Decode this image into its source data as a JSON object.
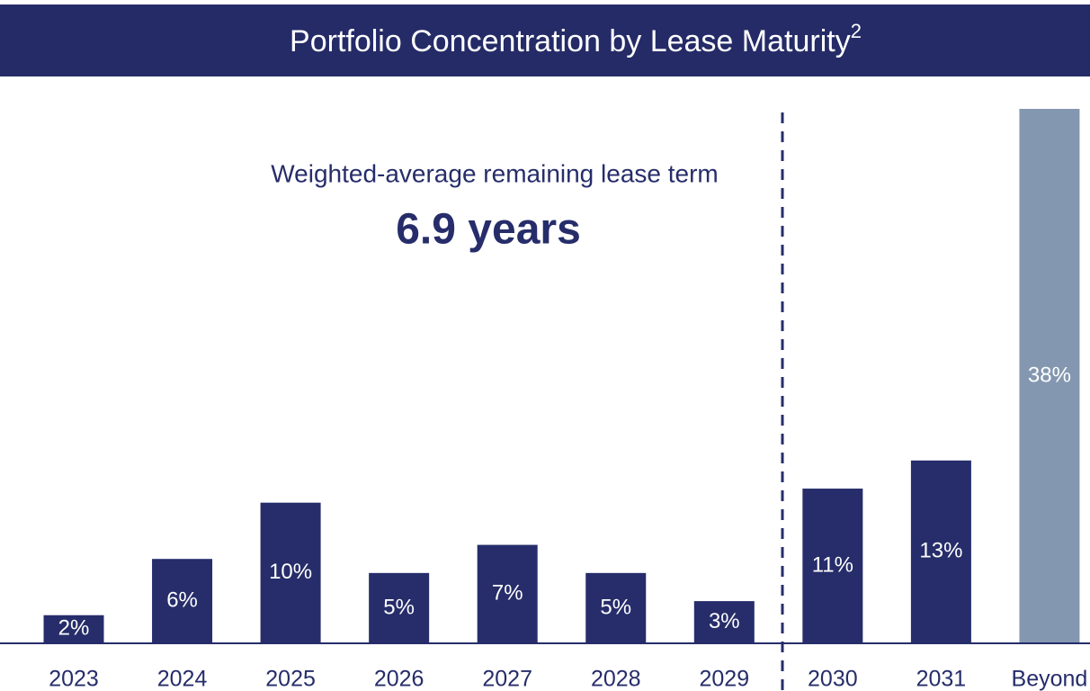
{
  "chart_data": {
    "type": "bar",
    "title": "Portfolio Concentration by Lease Maturity",
    "title_note": "2",
    "annotation": "Weighted-average remaining lease term",
    "annotation_value": "6.9 years",
    "categories": [
      "2023",
      "2024",
      "2025",
      "2026",
      "2027",
      "2028",
      "2029",
      "2030",
      "2031",
      "Beyond"
    ],
    "values": [
      2,
      6,
      10,
      5,
      7,
      5,
      3,
      11,
      13,
      38
    ],
    "value_labels": [
      "2%",
      "6%",
      "10%",
      "5%",
      "7%",
      "5%",
      "3%",
      "11%",
      "13%",
      "38%"
    ],
    "colors": [
      "#262d6a",
      "#262d6a",
      "#262d6a",
      "#262d6a",
      "#262d6a",
      "#262d6a",
      "#262d6a",
      "#262d6a",
      "#262d6a",
      "#8497b0"
    ],
    "ylim": [
      0,
      38
    ]
  }
}
